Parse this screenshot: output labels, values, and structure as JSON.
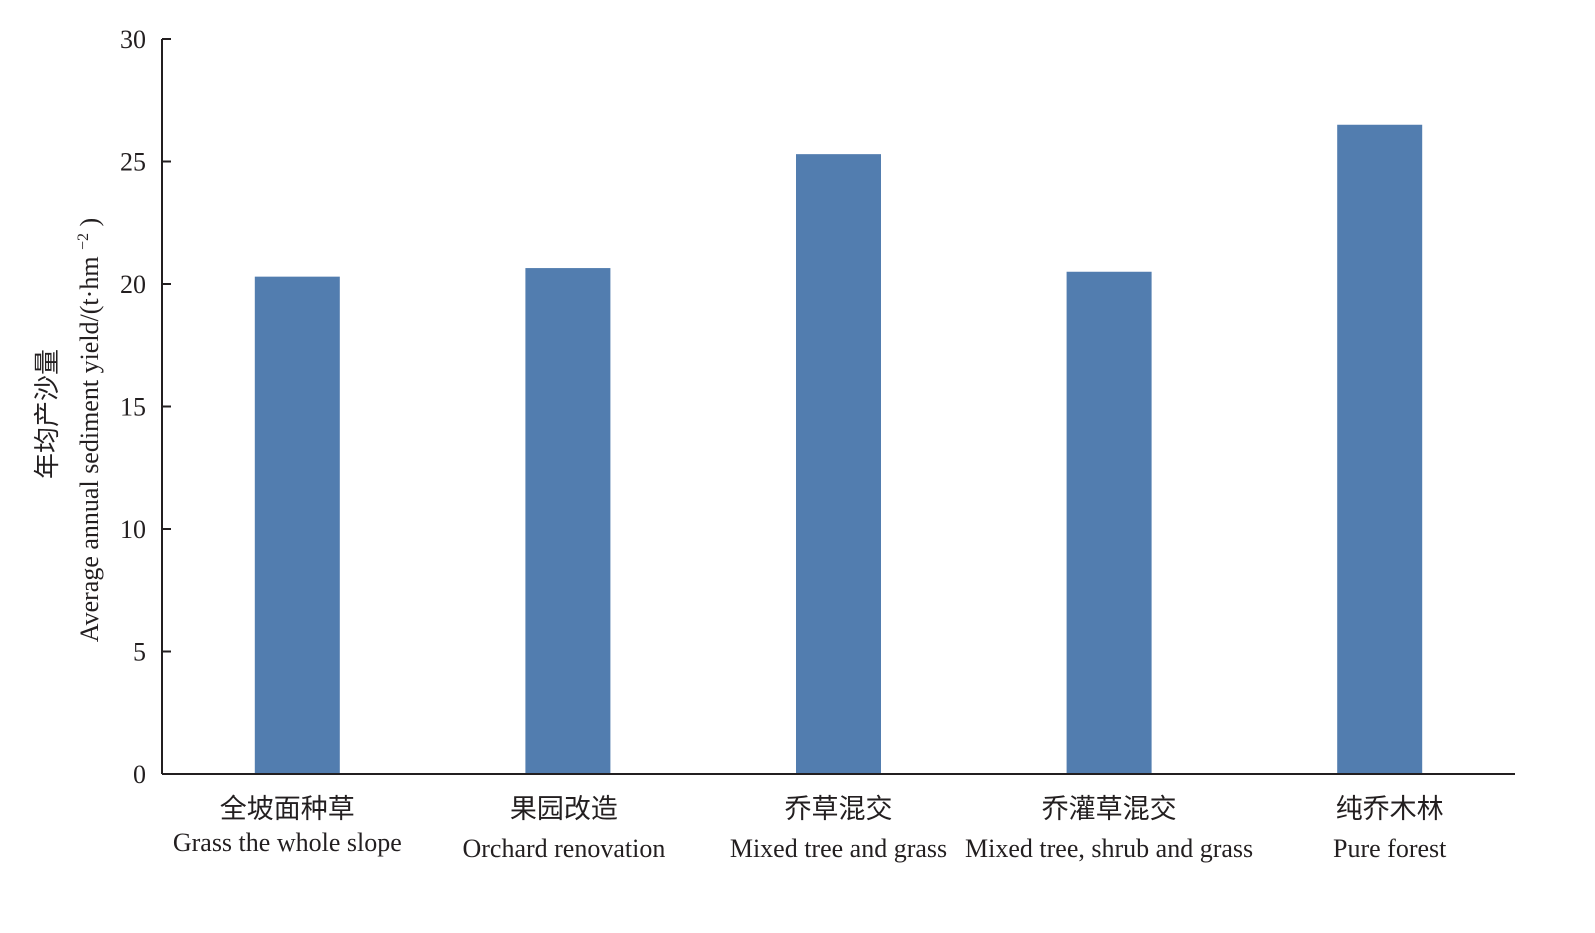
{
  "chart_data": {
    "type": "bar",
    "title": "",
    "categories_cn": [
      "全坡面种草",
      "果园改造",
      "乔草混交",
      "乔灌草混交",
      "纯乔木林"
    ],
    "categories": [
      "Grass the whole slope",
      "Orchard renovation",
      "Mixed tree and grass",
      "Mixed tree, shrub and grass",
      "Pure forest"
    ],
    "values": [
      20.3,
      20.65,
      25.3,
      20.5,
      26.5
    ],
    "ylabel_cn": "年均产沙量",
    "ylabel": "Average annual sediment yield/(t·hm",
    "ylabel_unit_exp": "−2",
    "ylabel_close": ")",
    "ylim": [
      0,
      30
    ],
    "yticks": [
      "0",
      "5",
      "10",
      "15",
      "20",
      "25",
      "30"
    ],
    "grid": false,
    "legend": "none",
    "bar_color": "#527daf",
    "axis_color": "#231f20"
  }
}
